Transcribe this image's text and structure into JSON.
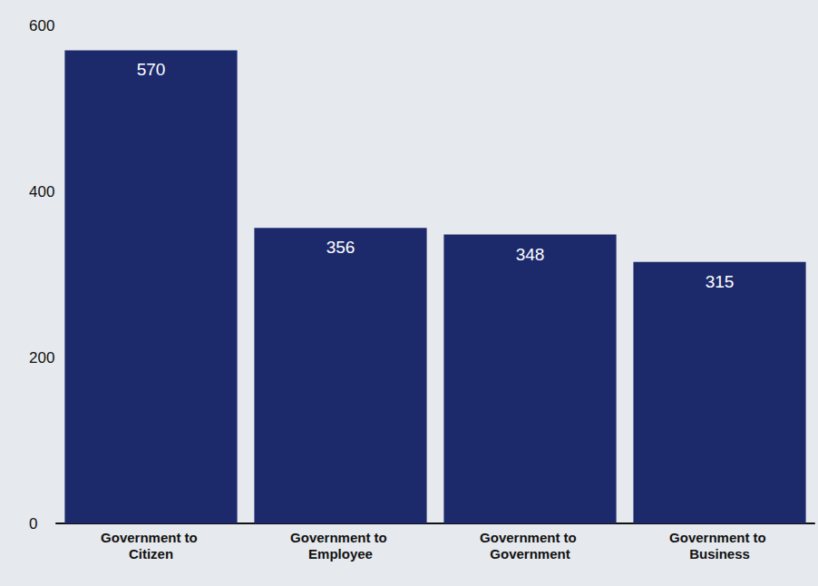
{
  "chart_data": {
    "type": "bar",
    "categories": [
      "Government to Citizen",
      "Government to Employee",
      "Government to Government",
      "Government to Business"
    ],
    "values": [
      570,
      356,
      348,
      315
    ],
    "color": "#1c2a6b",
    "ylim": [
      0,
      600
    ],
    "yticks": [
      0,
      200,
      400,
      600
    ],
    "grid": false,
    "data_labels": true
  }
}
